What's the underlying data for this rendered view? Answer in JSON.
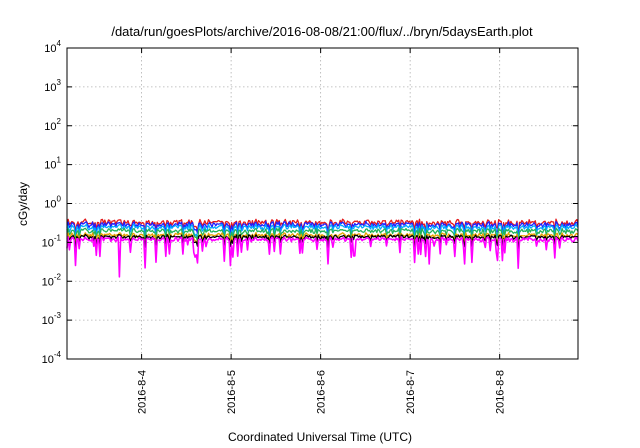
{
  "chart_data": {
    "type": "line",
    "title": "/data/run/goesPlots/archive/2016-08-08/21:00/flux/../bryn/5daysEarth.plot",
    "xlabel": "Coordinated Universal Time (UTC)",
    "ylabel": "cGy/day",
    "yscale": "log",
    "ylim": [
      0.0001,
      10000
    ],
    "xlim": [
      "2016-08-03 04:00",
      "2016-08-08 21:00"
    ],
    "grid": true,
    "legend": "none",
    "y_ticks": [
      {
        "value": 10000,
        "base": "10",
        "exp": "4"
      },
      {
        "value": 1000,
        "base": "10",
        "exp": "3"
      },
      {
        "value": 100,
        "base": "10",
        "exp": "2"
      },
      {
        "value": 10,
        "base": "10",
        "exp": "1"
      },
      {
        "value": 1,
        "base": "10",
        "exp": "0"
      },
      {
        "value": 0.1,
        "base": "10",
        "exp": "-1"
      },
      {
        "value": 0.01,
        "base": "10",
        "exp": "-2"
      },
      {
        "value": 0.001,
        "base": "10",
        "exp": "-3"
      },
      {
        "value": 0.0001,
        "base": "10",
        "exp": "-4"
      }
    ],
    "x_ticks": [
      "2016-8-4",
      "2016-8-5",
      "2016-8-6",
      "2016-8-7",
      "2016-8-8"
    ],
    "series": [
      {
        "color": "#e41a1c",
        "base": 0.33,
        "spread": 0.14,
        "dip": 0.25
      },
      {
        "color": "#1f1fff",
        "base": 0.29,
        "spread": 0.13,
        "dip": 0.3
      },
      {
        "color": "#00a9ff",
        "base": 0.25,
        "spread": 0.12,
        "dip": 0.35
      },
      {
        "color": "#21b35a",
        "base": 0.2,
        "spread": 0.1,
        "dip": 0.3
      },
      {
        "color": "#e6a000",
        "base": 0.155,
        "spread": 0.08,
        "dip": 0.3
      },
      {
        "color": "#000000",
        "base": 0.14,
        "spread": 0.07,
        "dip": 0.3
      },
      {
        "color": "#ff00ff",
        "base": 0.12,
        "spread": 0.08,
        "dip": 0.75
      }
    ],
    "notable_minima": [
      {
        "date": "2016-08-03 18:00",
        "value": 0.013
      },
      {
        "date": "2016-08-06 09:00",
        "value": 0.045
      },
      {
        "date": "2016-08-07 05:00",
        "value": 0.028
      }
    ]
  }
}
